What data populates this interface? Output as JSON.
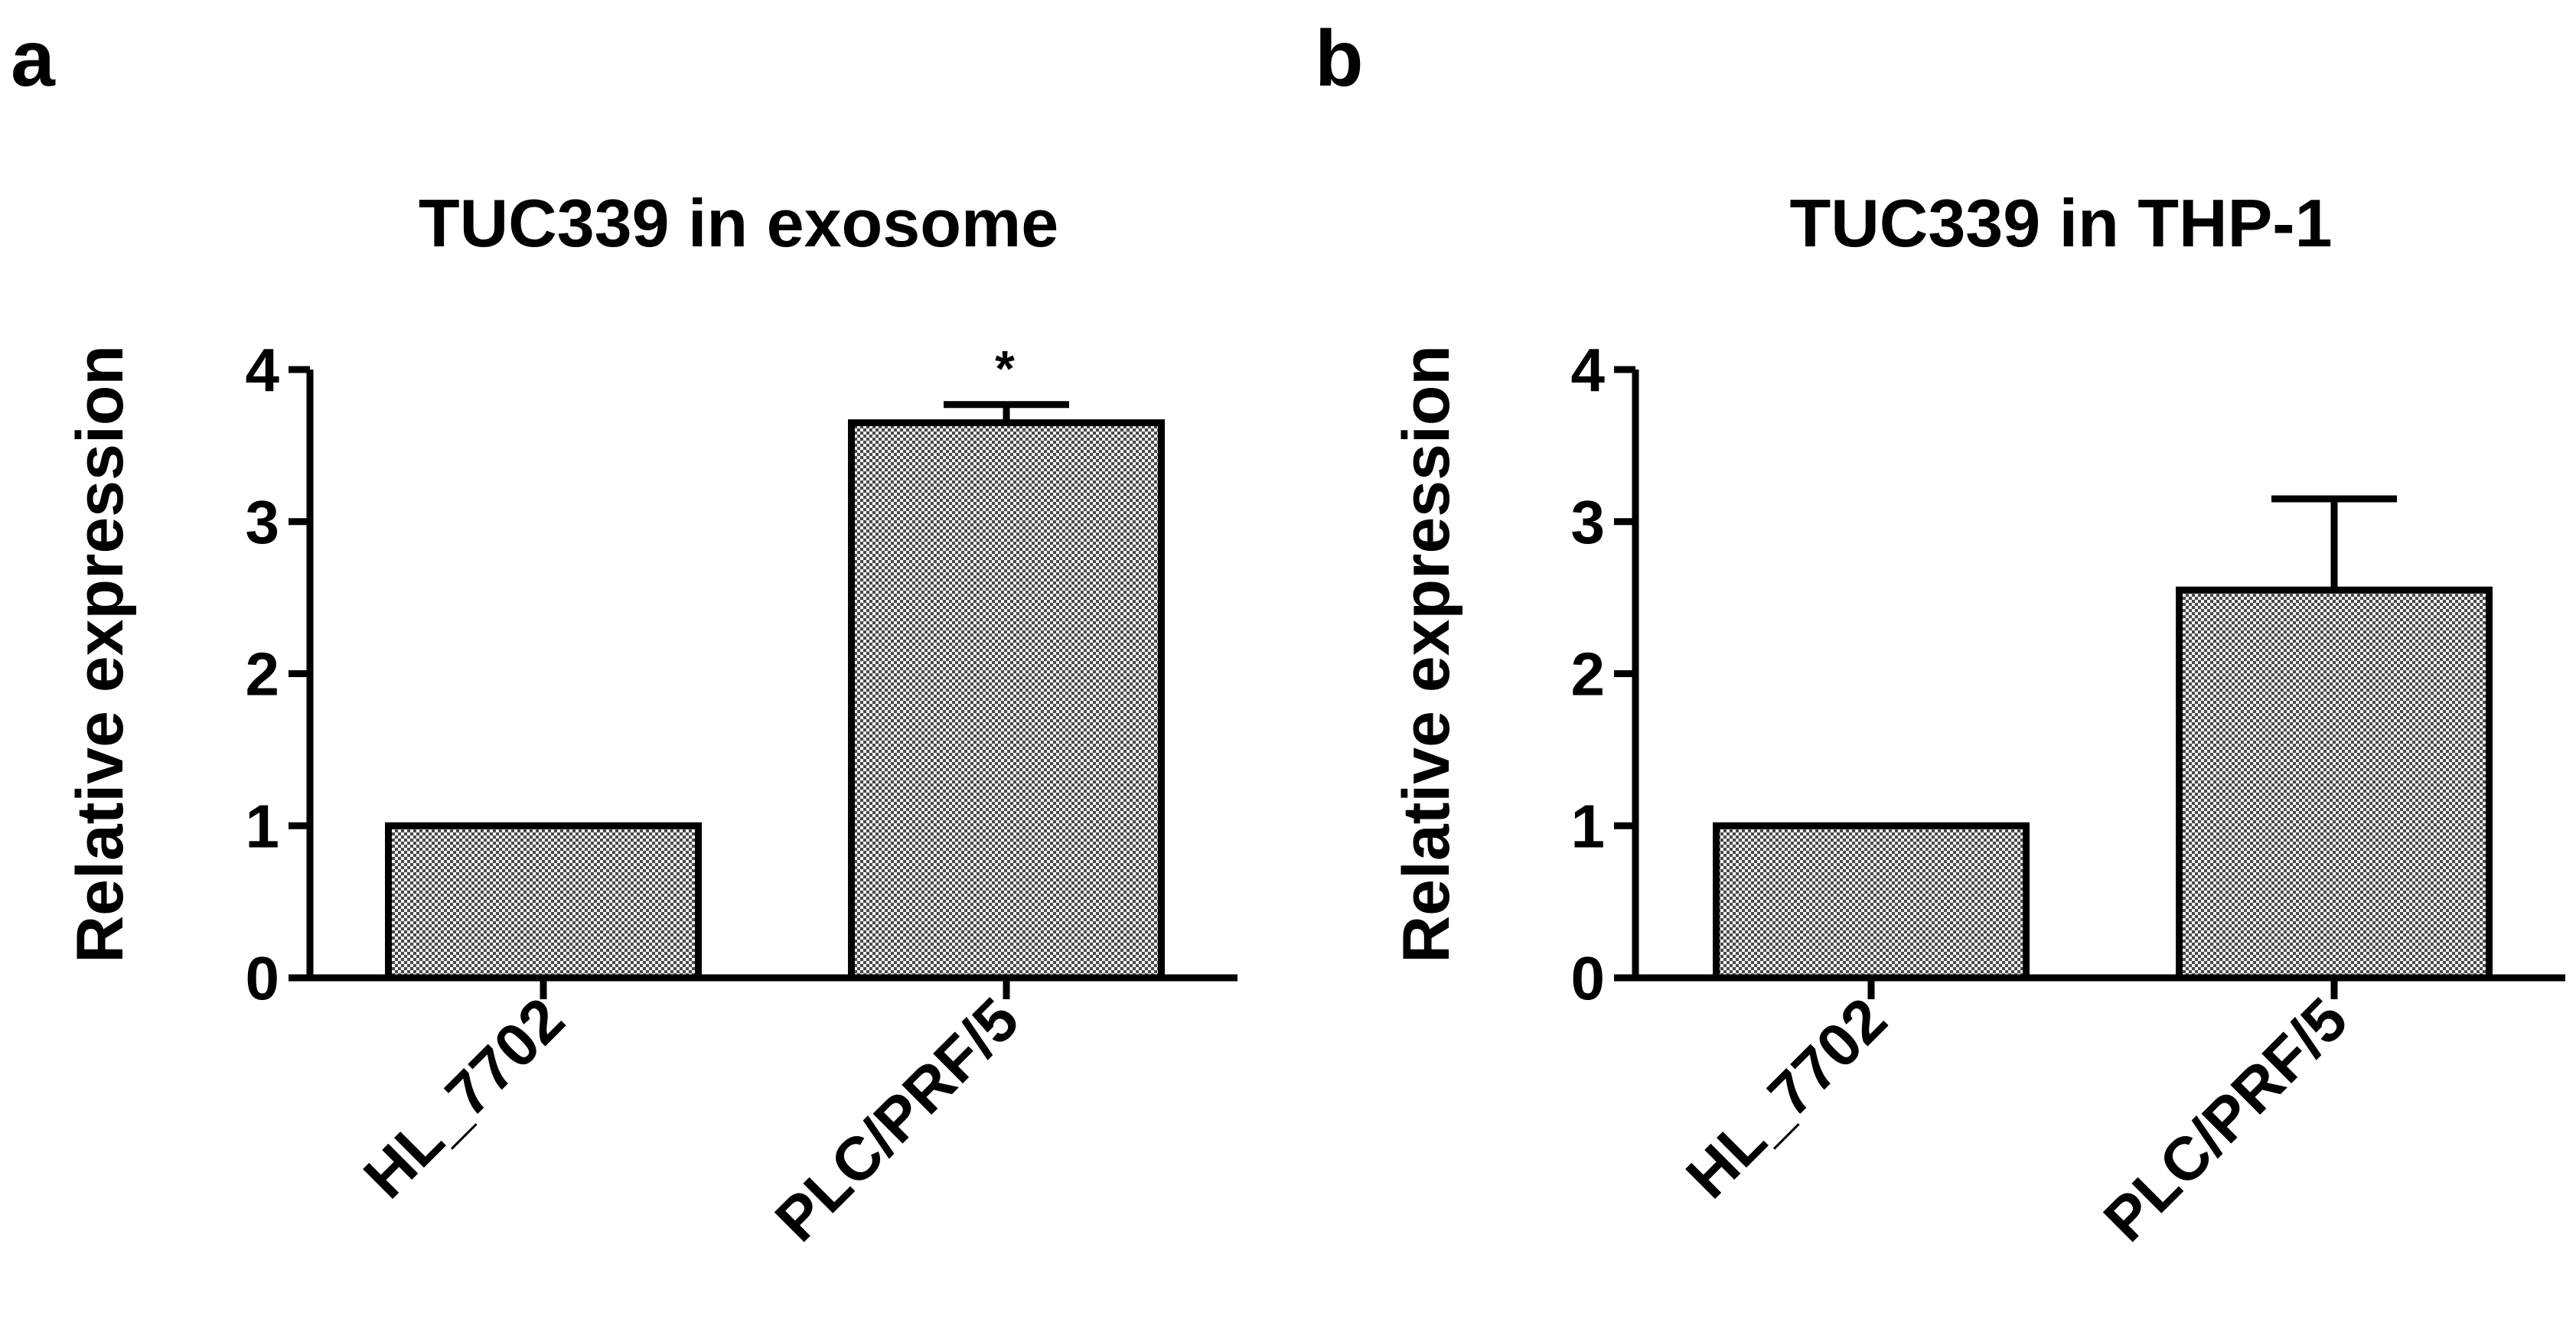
{
  "panels": [
    {
      "letter": "a"
    },
    {
      "letter": "b"
    }
  ],
  "chart_data": [
    {
      "type": "bar",
      "title": "TUC339 in exosome",
      "ylabel": "Relative expression",
      "xlabel": "",
      "categories": [
        "HL_7702",
        "PLC/PRF/5"
      ],
      "values": [
        1.0,
        3.65
      ],
      "error_bars": [
        0,
        0.12
      ],
      "annotations": [
        "",
        "*"
      ],
      "ylim": [
        0,
        4
      ],
      "yticks": [
        0,
        1,
        2,
        3,
        4
      ],
      "ytick_labels": [
        "0",
        "1",
        "2",
        "3",
        "4"
      ],
      "grid": false,
      "legend": "none"
    },
    {
      "type": "bar",
      "title": "TUC339 in THP-1",
      "ylabel": "Relative expression",
      "xlabel": "",
      "categories": [
        "HL_7702",
        "PLC/PRF/5"
      ],
      "values": [
        1.0,
        2.55
      ],
      "error_bars": [
        0,
        0.6
      ],
      "annotations": [
        "",
        ""
      ],
      "ylim": [
        0,
        4
      ],
      "yticks": [
        0,
        1,
        2,
        3,
        4
      ],
      "ytick_labels": [
        "0",
        "1",
        "2",
        "3",
        "4"
      ],
      "grid": false,
      "legend": "none"
    }
  ]
}
